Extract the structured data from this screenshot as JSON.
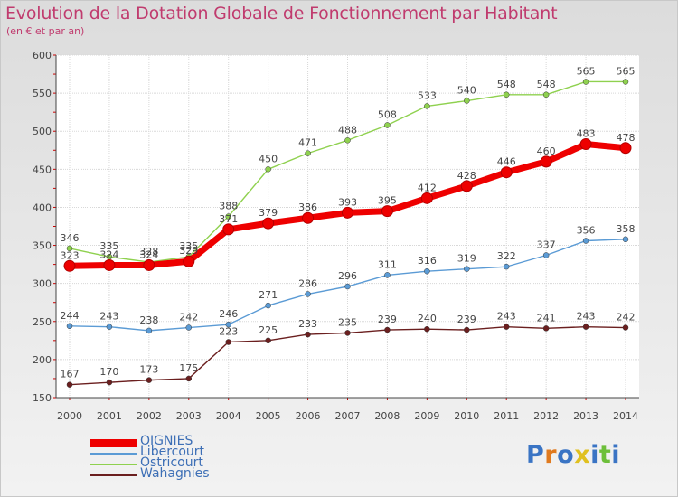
{
  "title": "Evolution de la Dotation Globale de Fonctionnement par Habitant",
  "subtitle": "(en € et par an)",
  "brand": {
    "letters": [
      "P",
      "r",
      "o",
      "x",
      "i",
      "t",
      "i"
    ],
    "colors": [
      "#3a74c4",
      "#e07a1f",
      "#3a74c4",
      "#e0c01f",
      "#3a74c4",
      "#6dbf3a",
      "#3a74c4"
    ]
  },
  "chart_data": {
    "type": "line",
    "x": [
      2000,
      2001,
      2002,
      2003,
      2004,
      2005,
      2006,
      2007,
      2008,
      2009,
      2010,
      2011,
      2012,
      2013,
      2014
    ],
    "ylim": [
      150,
      600
    ],
    "yticks": [
      150,
      200,
      250,
      300,
      350,
      400,
      450,
      500,
      550,
      600
    ],
    "grid": true,
    "legend_position": "bottom-left",
    "series": [
      {
        "name": "Wahagnies",
        "color": "#6b1f1f",
        "values": [
          167,
          170,
          173,
          175,
          223,
          225,
          233,
          235,
          239,
          240,
          239,
          243,
          241,
          243,
          242
        ]
      },
      {
        "name": "Libercourt",
        "color": "#5b9bd5",
        "values": [
          244,
          243,
          238,
          242,
          246,
          271,
          286,
          296,
          311,
          316,
          319,
          322,
          337,
          356,
          358
        ]
      },
      {
        "name": "Ostricourt",
        "color": "#8fd14f",
        "values": [
          346,
          335,
          328,
          335,
          388,
          450,
          471,
          488,
          508,
          533,
          540,
          548,
          548,
          565,
          565
        ]
      },
      {
        "name": "OIGNIES",
        "color": "#ee0000",
        "values": [
          323,
          324,
          324,
          329,
          371,
          379,
          386,
          393,
          395,
          412,
          428,
          446,
          460,
          483,
          478
        ]
      }
    ],
    "legend_order": [
      "OIGNIES",
      "Libercourt",
      "Ostricourt",
      "Wahagnies"
    ]
  }
}
